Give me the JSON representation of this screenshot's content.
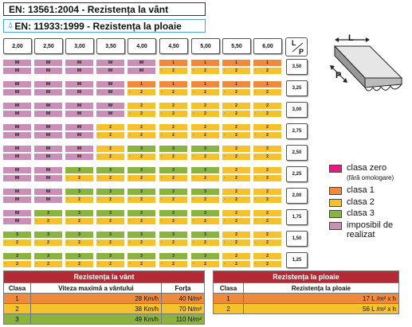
{
  "standards": {
    "wind": "EN: 13561:2004 - Rezistența la vânt",
    "rain": "EN: 11933:1999 - Rezistența la ploaie"
  },
  "colors": {
    "clasa_zero": "#e8197f",
    "clasa_1": "#ef8a3c",
    "clasa_2": "#f5c22e",
    "clasa_3": "#8ab33f",
    "imposibil": "#c98fb6",
    "header_red": "#b32a34",
    "rain_blue": "#49a7d6"
  },
  "grid": {
    "column_headers": [
      "2,00",
      "2,50",
      "3,00",
      "3,50",
      "4,00",
      "4,50",
      "5,00",
      "5,50",
      "6,00"
    ],
    "lp_header": {
      "l": "L",
      "p": "P"
    },
    "rows": [
      {
        "p": "3,50",
        "cells": [
          [
            "IM",
            "IM"
          ],
          [
            "IM",
            "IM"
          ],
          [
            "IM",
            "IM"
          ],
          [
            "IM",
            "IM"
          ],
          [
            "IM",
            "IM"
          ],
          [
            "1",
            "2"
          ],
          [
            "1",
            "2"
          ],
          [
            "1",
            "2"
          ],
          [
            "1",
            "2"
          ]
        ]
      },
      {
        "p": "3,25",
        "cells": [
          [
            "IM",
            "IM"
          ],
          [
            "IM",
            "IM"
          ],
          [
            "IM",
            "IM"
          ],
          [
            "IM",
            "IM"
          ],
          [
            "1",
            "2"
          ],
          [
            "1",
            "2"
          ],
          [
            "1",
            "2"
          ],
          [
            "1",
            "2"
          ],
          [
            "1",
            "2"
          ]
        ]
      },
      {
        "p": "3,00",
        "cells": [
          [
            "IM",
            "IM"
          ],
          [
            "IM",
            "IM"
          ],
          [
            "IM",
            "IM"
          ],
          [
            "IM",
            "IM"
          ],
          [
            "2",
            "2"
          ],
          [
            "2",
            "2"
          ],
          [
            "2",
            "2"
          ],
          [
            "2",
            "2"
          ],
          [
            "2",
            "2"
          ]
        ]
      },
      {
        "p": "2,75",
        "cells": [
          [
            "IM",
            "IM"
          ],
          [
            "IM",
            "IM"
          ],
          [
            "IM",
            "IM"
          ],
          [
            "2",
            "2"
          ],
          [
            "2",
            "2"
          ],
          [
            "2",
            "2"
          ],
          [
            "2",
            "2"
          ],
          [
            "2",
            "2"
          ],
          [
            "2",
            "2"
          ]
        ]
      },
      {
        "p": "2,50",
        "cells": [
          [
            "IM",
            "IM"
          ],
          [
            "IM",
            "IM"
          ],
          [
            "IM",
            "IM"
          ],
          [
            "2",
            "2"
          ],
          [
            "3",
            "2"
          ],
          [
            "3",
            "2"
          ],
          [
            "3",
            "2"
          ],
          [
            "2",
            "2"
          ],
          [
            "2",
            "2"
          ]
        ]
      },
      {
        "p": "2,25",
        "cells": [
          [
            "IM",
            "IM"
          ],
          [
            "IM",
            "IM"
          ],
          [
            "3",
            "2"
          ],
          [
            "3",
            "2"
          ],
          [
            "3",
            "2"
          ],
          [
            "3",
            "2"
          ],
          [
            "3",
            "2"
          ],
          [
            "2",
            "2"
          ],
          [
            "2",
            "2"
          ]
        ]
      },
      {
        "p": "2,00",
        "cells": [
          [
            "IM",
            "IM"
          ],
          [
            "IM",
            "IM"
          ],
          [
            "3",
            "2"
          ],
          [
            "3",
            "2"
          ],
          [
            "3",
            "2"
          ],
          [
            "3",
            "2"
          ],
          [
            "3",
            "2"
          ],
          [
            "2",
            "2"
          ],
          [
            "2",
            "2"
          ]
        ]
      },
      {
        "p": "1,75",
        "cells": [
          [
            "IM",
            "IM"
          ],
          [
            "3",
            "2"
          ],
          [
            "3",
            "2"
          ],
          [
            "3",
            "2"
          ],
          [
            "3",
            "2"
          ],
          [
            "3",
            "2"
          ],
          [
            "3",
            "2"
          ],
          [
            "2",
            "2"
          ],
          [
            "2",
            "2"
          ]
        ]
      },
      {
        "p": "1,50",
        "cells": [
          [
            "3",
            "2"
          ],
          [
            "3",
            "2"
          ],
          [
            "3",
            "2"
          ],
          [
            "3",
            "2"
          ],
          [
            "3",
            "2"
          ],
          [
            "3",
            "2"
          ],
          [
            "3",
            "2"
          ],
          [
            "2",
            "2"
          ],
          [
            "2",
            "2"
          ]
        ]
      },
      {
        "p": "1,25",
        "cells": [
          [
            "3",
            "2"
          ],
          [
            "3",
            "2"
          ],
          [
            "3",
            "2"
          ],
          [
            "3",
            "2"
          ],
          [
            "3",
            "2"
          ],
          [
            "3",
            "2"
          ],
          [
            "3",
            "2"
          ],
          [
            "2",
            "2"
          ],
          [
            "2",
            "2"
          ]
        ]
      }
    ]
  },
  "diagram": {
    "label_l": "L",
    "label_p": "P"
  },
  "legend": [
    {
      "label": "clasa zero",
      "sub": "(fără omologare)",
      "color": "#e8197f"
    },
    {
      "label": "clasa 1",
      "sub": "",
      "color": "#ef8a3c"
    },
    {
      "label": "clasa 2",
      "sub": "",
      "color": "#f5c22e"
    },
    {
      "label": "clasa 3",
      "sub": "",
      "color": "#8ab33f"
    },
    {
      "label": "imposibil de",
      "label2": "realizat",
      "sub": "",
      "color": "#c98fb6"
    }
  ],
  "wind_table": {
    "title": "Rezistența la vânt",
    "headers": [
      "Clasa",
      "Viteza maximă a vântului",
      "Forța"
    ],
    "rows": [
      [
        "1",
        "28 Km/h",
        "40 N/m²"
      ],
      [
        "2",
        "38 Km/h",
        "70 N/m²"
      ],
      [
        "3",
        "49 Km/h",
        "110 N/m²"
      ]
    ]
  },
  "rain_table": {
    "title": "Rezistența la ploaie",
    "headers": [
      "Clasa",
      "Rezistența la ploaie"
    ],
    "rows": [
      [
        "1",
        "17 L /m² x h"
      ],
      [
        "2",
        "56 L /m² x h"
      ]
    ]
  }
}
